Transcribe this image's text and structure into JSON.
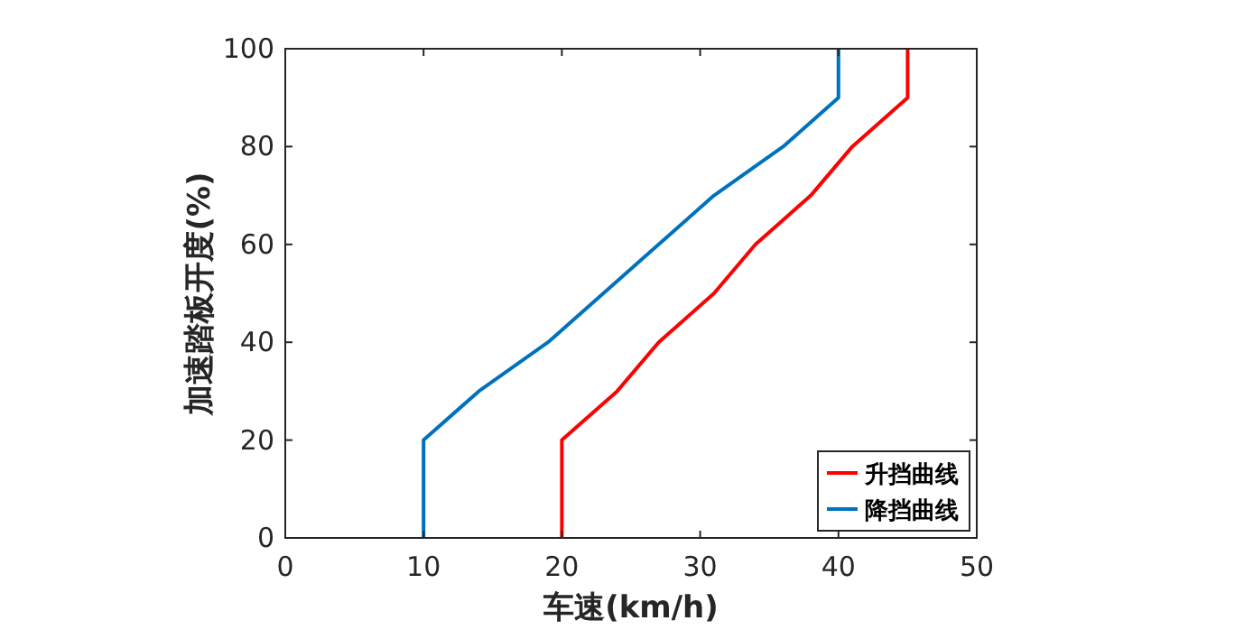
{
  "chart_data": {
    "type": "line",
    "xlabel": "车速(km/h)",
    "ylabel": "加速踏板开度(%)",
    "xlim": [
      0,
      50
    ],
    "ylim": [
      0,
      100
    ],
    "xticks": [
      0,
      10,
      20,
      30,
      40,
      50
    ],
    "yticks": [
      0,
      20,
      40,
      60,
      80,
      100
    ],
    "grid": false,
    "legend": "bottom right",
    "marker": "none",
    "line_style": "solid",
    "series": [
      {
        "name": "升挡曲线",
        "color": "#ff0000",
        "x": [
          20,
          20,
          24,
          27,
          31,
          34,
          38,
          41,
          45,
          45
        ],
        "values": [
          0,
          20,
          30,
          40,
          50,
          60,
          70,
          80,
          90,
          100
        ]
      },
      {
        "name": "降挡曲线",
        "color": "#0072bd",
        "x": [
          10,
          10,
          14,
          19,
          23,
          27,
          31,
          36,
          40,
          40
        ],
        "values": [
          0,
          20,
          30,
          40,
          50,
          60,
          70,
          80,
          90,
          100
        ]
      }
    ]
  }
}
